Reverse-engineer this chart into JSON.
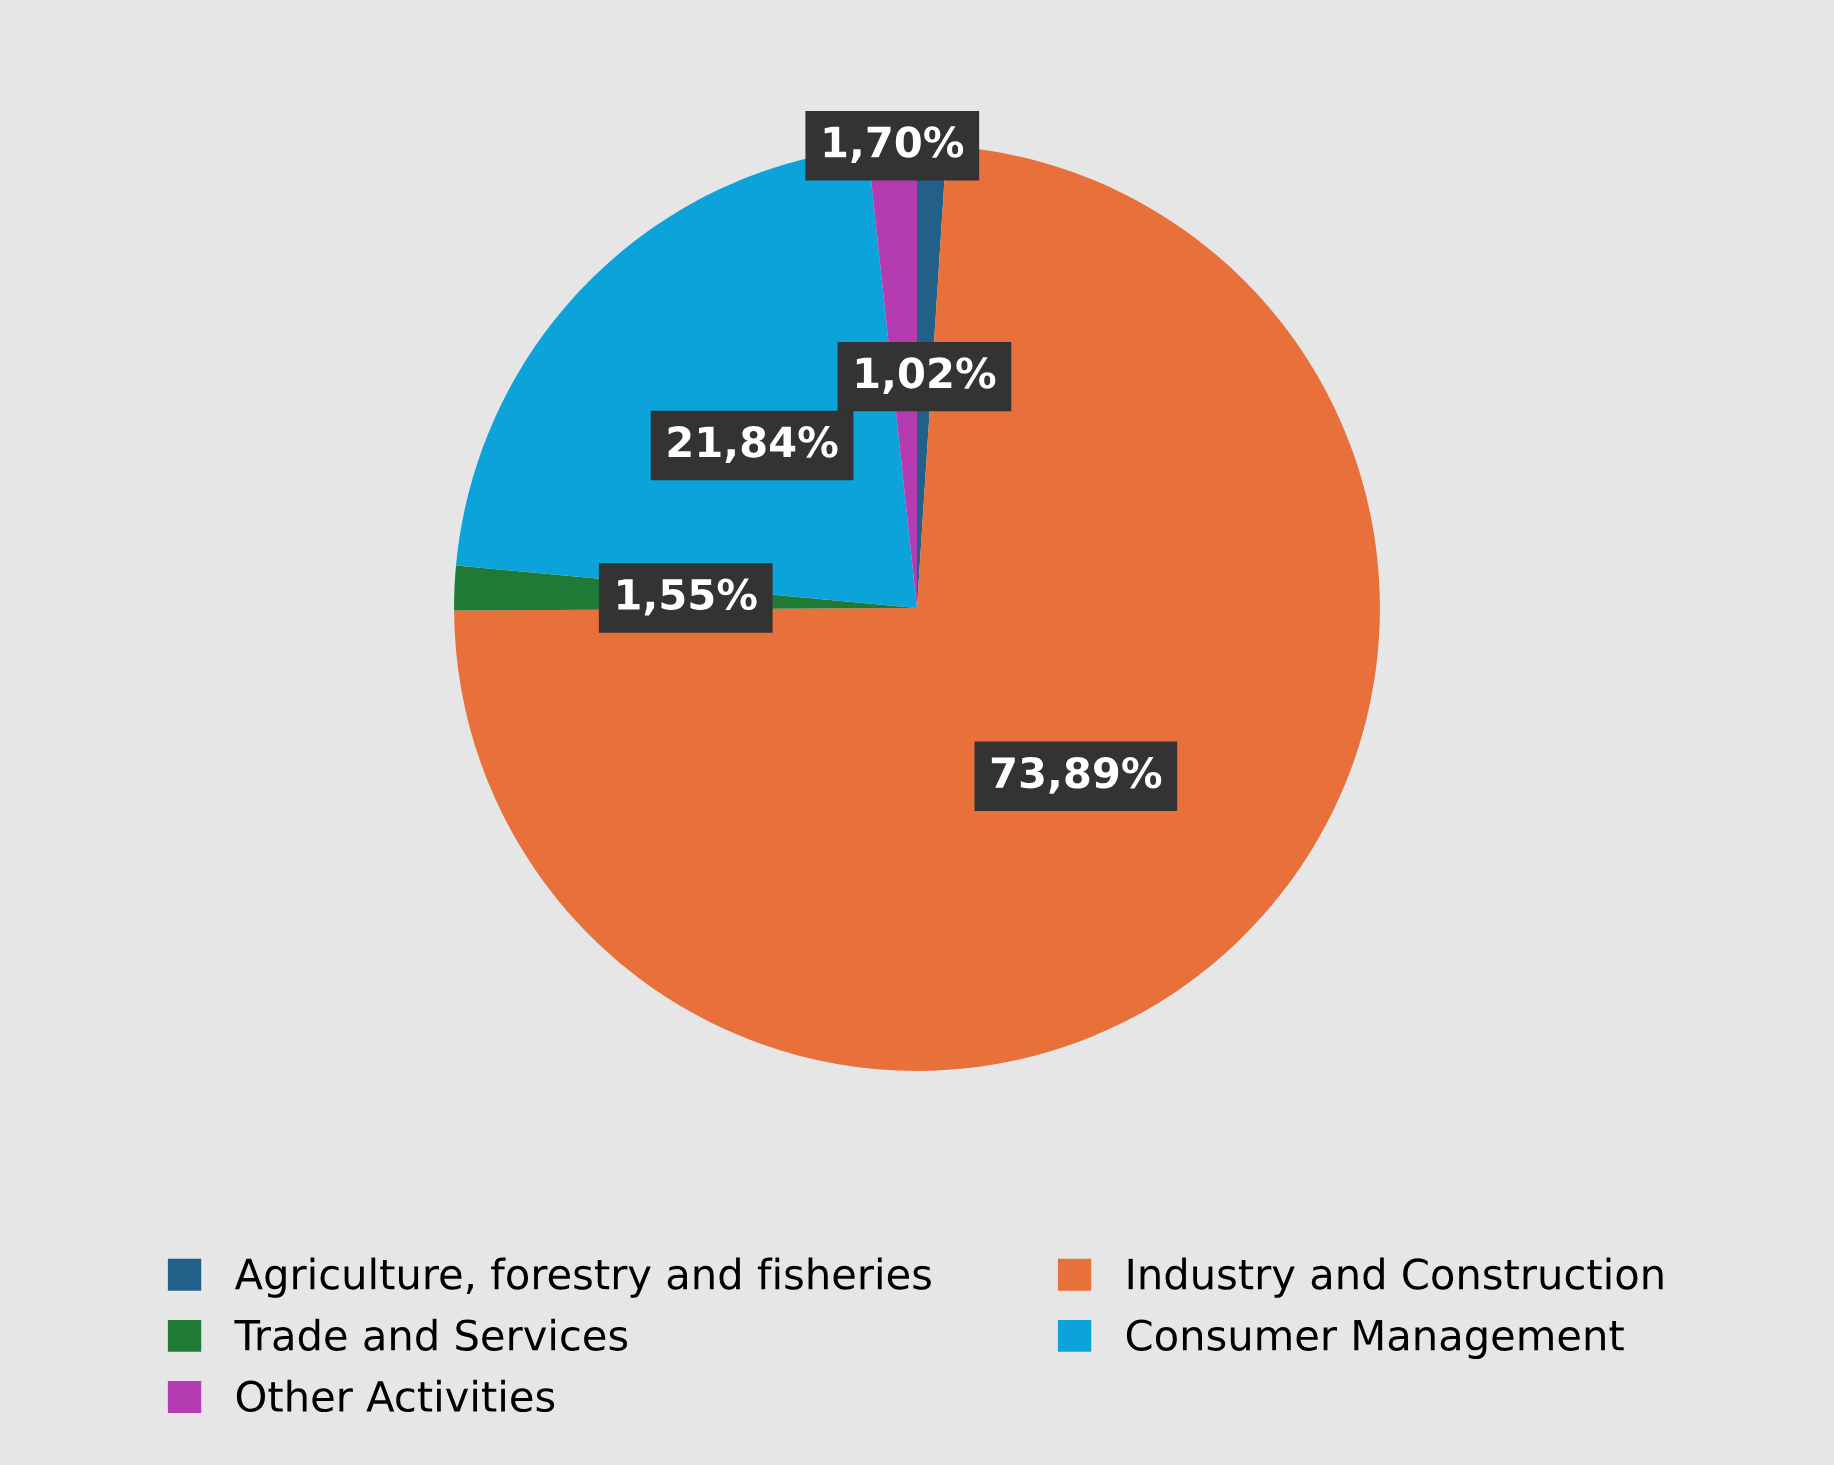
{
  "chart_data": {
    "type": "pie",
    "categories": [
      "Agriculture, forestry and fisheries",
      "Industry and Construction",
      "Trade and Services",
      "Consumer Management",
      "Other Activities"
    ],
    "values": [
      1.02,
      73.89,
      1.55,
      21.84,
      1.7
    ],
    "value_labels": [
      "1,02%",
      "73,89%",
      "1,55%",
      "21,84%",
      "1,70%"
    ],
    "colors": [
      "#22608a",
      "#e8703a",
      "#1f7a35",
      "#0ba3da",
      "#b53cb0"
    ],
    "legend": "bottom"
  }
}
